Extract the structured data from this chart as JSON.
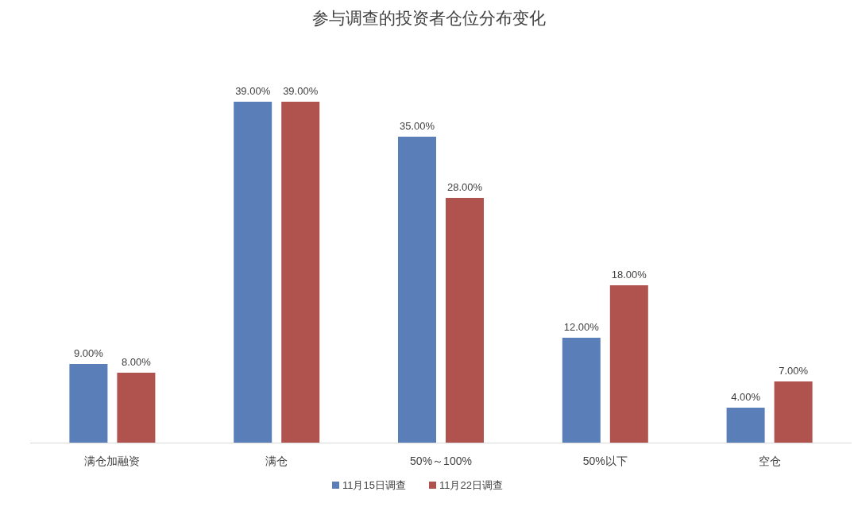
{
  "chart_data": {
    "type": "bar",
    "title": "参与调查的投资者仓位分布变化",
    "categories": [
      "满仓加融资",
      "满仓",
      "50%～100%",
      "50%以下",
      "空仓"
    ],
    "series": [
      {
        "name": "11月15日调查",
        "color": "#5a7fb8",
        "values": [
          9,
          39,
          35,
          12,
          4
        ],
        "value_labels": [
          "9.00%",
          "39.00%",
          "35.00%",
          "12.00%",
          "4.00%"
        ]
      },
      {
        "name": "11月22日调查",
        "color": "#b0524e",
        "values": [
          8,
          39,
          28,
          18,
          7
        ],
        "value_labels": [
          "8.00%",
          "39.00%",
          "28.00%",
          "18.00%",
          "7.00%"
        ]
      }
    ],
    "legend": "bottom"
  }
}
